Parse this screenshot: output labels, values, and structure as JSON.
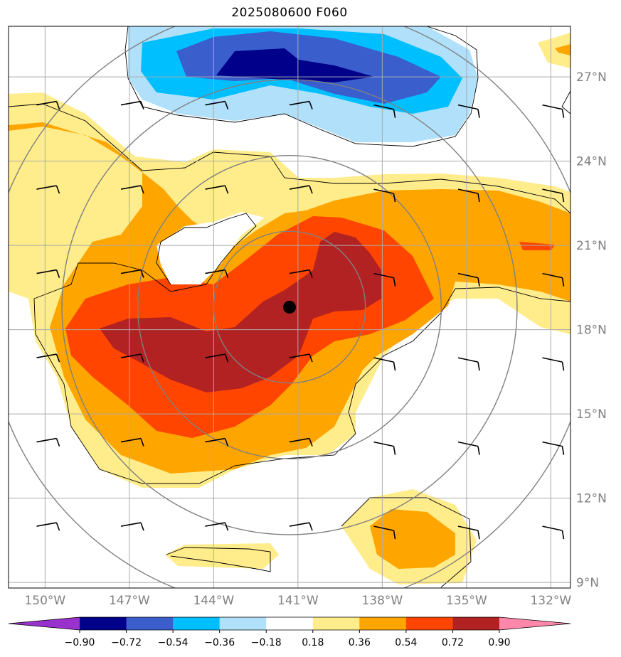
{
  "title": "2025080600 F060",
  "map": {
    "lon_range": [
      -151.3,
      -131.3
    ],
    "lat_range": [
      8.8,
      28.8
    ],
    "lon_ticks": [
      {
        "value": -150,
        "label": "150°W"
      },
      {
        "value": -147,
        "label": "147°W"
      },
      {
        "value": -144,
        "label": "144°W"
      },
      {
        "value": -141,
        "label": "141°W"
      },
      {
        "value": -138,
        "label": "138°W"
      },
      {
        "value": -135,
        "label": "135°W"
      },
      {
        "value": -132,
        "label": "132°W"
      }
    ],
    "lat_ticks": [
      {
        "value": 9,
        "label": "9°N"
      },
      {
        "value": 12,
        "label": "12°N"
      },
      {
        "value": 15,
        "label": "15°N"
      },
      {
        "value": 18,
        "label": "18°N"
      },
      {
        "value": 21,
        "label": "21°N"
      },
      {
        "value": 24,
        "label": "24°N"
      },
      {
        "value": 27,
        "label": "27°N"
      }
    ],
    "grid": true,
    "storm_center": {
      "lon": -141.3,
      "lat": 18.8
    },
    "range_rings_deg": [
      2.7,
      5.4,
      8.1,
      10.8
    ],
    "wind_barb_lons": [
      -150.3,
      -147.3,
      -144.3,
      -141.3,
      -138.3,
      -135.3,
      -132.3
    ],
    "wind_barb_lats": [
      26.0,
      23.0,
      20.0,
      17.0,
      14.0,
      11.0
    ],
    "colors": {
      "grid": "#aaaaaa",
      "rings": "#808080",
      "ticks": "#808080"
    }
  },
  "colorbar": {
    "levels": [
      -0.9,
      -0.72,
      -0.54,
      -0.36,
      -0.18,
      0.18,
      0.36,
      0.54,
      0.72,
      0.9
    ],
    "labels": [
      "−0.90",
      "−0.72",
      "−0.54",
      "−0.36",
      "−0.18",
      "0.18",
      "0.36",
      "0.54",
      "0.72",
      "0.90"
    ],
    "colors": [
      "#9932cc",
      "#00008b",
      "#3a5fcd",
      "#00bfff",
      "#b0e0fa",
      "#ffffff",
      "#ffec8b",
      "#ffa500",
      "#ff4500",
      "#b22222",
      "#ff88aa"
    ]
  }
}
